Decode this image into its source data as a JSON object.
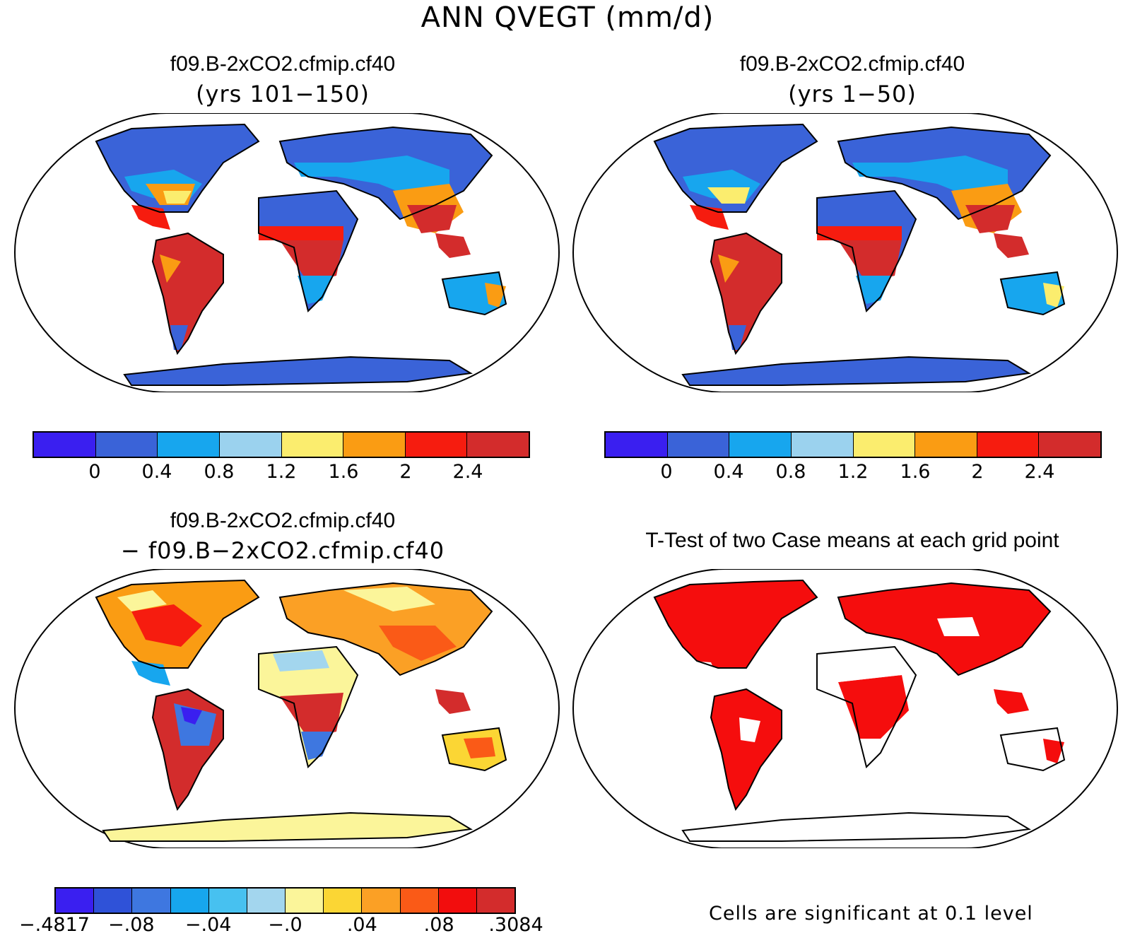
{
  "figure": {
    "title": "ANN QVEGT (mm/d)"
  },
  "panels": {
    "top_left": {
      "title": "f09.B-2xCO2.cfmip.cf40",
      "subtitle": "(yrs 101−150)"
    },
    "top_right": {
      "title": "f09.B-2xCO2.cfmip.cf40",
      "subtitle": "(yrs 1−50)"
    },
    "bottom_left": {
      "title": "f09.B-2xCO2.cfmip.cf40",
      "subtitle": "− f09.B−2xCO2.cfmip.cf40"
    },
    "bottom_right": {
      "title": "T-Test of two Case means at each grid point",
      "note": "Cells are significant at 0.1 level"
    }
  },
  "colorbars": {
    "absolute": {
      "colors": [
        "#3a1ff0",
        "#3a63d8",
        "#17a6ee",
        "#9bd2ee",
        "#fbed6e",
        "#fa9c13",
        "#f61c0f",
        "#d32c2c"
      ],
      "tick_labels": [
        "0",
        "0.4",
        "0.8",
        "1.2",
        "1.6",
        "2",
        "2.4"
      ]
    },
    "difference": {
      "colors": [
        "#3a1ff0",
        "#2f52d8",
        "#3e77e0",
        "#17a6ee",
        "#47c1f0",
        "#a3d6ee",
        "#fbf59a",
        "#fbd634",
        "#fba025",
        "#fa5a17",
        "#f20d0d",
        "#d32c2c"
      ],
      "tick_labels": [
        "−.4817",
        "−.08",
        "−.04",
        "−.0",
        ".04",
        ".08",
        ".3084"
      ]
    },
    "significance": {
      "color": "#f50d0d"
    }
  }
}
